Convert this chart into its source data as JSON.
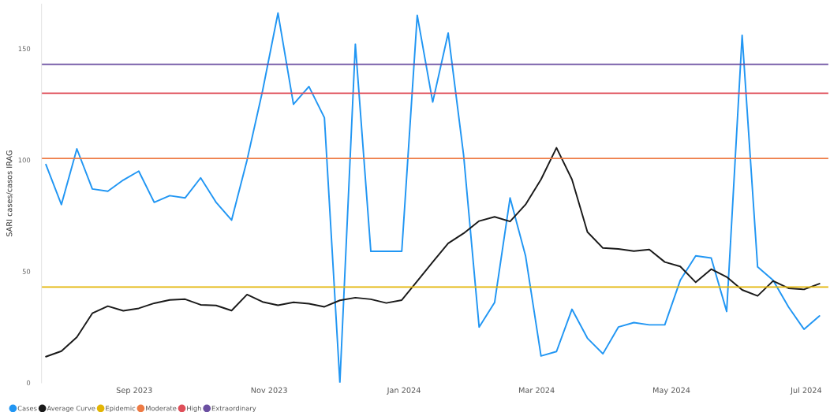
{
  "chart_data": {
    "type": "line",
    "ylabel": "SARI cases/casos IRAG",
    "x": [
      "2023-07-23",
      "2023-07-30",
      "2023-08-06",
      "2023-08-13",
      "2023-08-20",
      "2023-08-27",
      "2023-09-03",
      "2023-09-10",
      "2023-09-17",
      "2023-09-24",
      "2023-10-01",
      "2023-10-08",
      "2023-10-15",
      "2023-10-22",
      "2023-10-29",
      "2023-11-05",
      "2023-11-12",
      "2023-11-19",
      "2023-11-26",
      "2023-12-03",
      "2023-12-10",
      "2023-12-17",
      "2023-12-24",
      "2023-12-31",
      "2024-01-07",
      "2024-01-14",
      "2024-01-21",
      "2024-01-28",
      "2024-02-04",
      "2024-02-11",
      "2024-02-18",
      "2024-02-25",
      "2024-03-03",
      "2024-03-10",
      "2024-03-17",
      "2024-03-24",
      "2024-03-31",
      "2024-04-07",
      "2024-04-14",
      "2024-04-21",
      "2024-04-28",
      "2024-05-05",
      "2024-05-12",
      "2024-05-19",
      "2024-05-26",
      "2024-06-02",
      "2024-06-09",
      "2024-06-16",
      "2024-06-23",
      "2024-06-30",
      "2024-07-07"
    ],
    "series": [
      {
        "name": "Cases",
        "color": "#2196f3",
        "values": [
          98,
          80,
          105,
          87,
          86,
          91,
          95,
          81,
          84,
          83,
          92,
          81,
          73,
          100,
          131,
          166,
          125,
          133,
          119,
          0,
          152,
          59,
          59,
          59,
          165,
          126,
          157,
          102,
          25,
          36,
          83,
          57,
          12,
          14,
          33,
          20,
          13,
          25,
          27,
          26,
          26,
          46,
          57,
          56,
          32,
          156,
          52,
          46,
          34,
          24,
          30
        ]
      },
      {
        "name": "Average Curve",
        "color": "#1a1a1a",
        "values": [
          11.7,
          14.2,
          20.5,
          31.2,
          34.4,
          32.3,
          33.4,
          35.7,
          37.2,
          37.5,
          35.0,
          34.7,
          32.4,
          39.6,
          36.3,
          34.8,
          36.1,
          35.5,
          34.1,
          37.0,
          38.2,
          37.5,
          35.8,
          37.1,
          45.6,
          54.2,
          62.6,
          67.1,
          72.6,
          74.5,
          72.4,
          80.0,
          91.3,
          105.5,
          91.3,
          67.7,
          60.5,
          60.1,
          59.1,
          59.8,
          54.2,
          52.2,
          45.1,
          51.0,
          47.5,
          41.7,
          39.0,
          45.7,
          42.4,
          41.9,
          44.5
        ]
      }
    ],
    "ref_lines": [
      {
        "axis": "y",
        "value": 43,
        "label": "Epidemic",
        "color": "#e3b505"
      },
      {
        "axis": "y",
        "value": 100.7,
        "label": "Moderate",
        "color": "#ee7b45"
      },
      {
        "axis": "y",
        "value": 130,
        "label": "High",
        "color": "#df4f5a"
      },
      {
        "axis": "y",
        "value": 143,
        "label": "Extraordinary",
        "color": "#6b4fa1"
      }
    ],
    "xlim": [
      "2023-07-21",
      "2024-07-11"
    ],
    "xticks": [
      {
        "value": "2023-09-01",
        "label": "Sep 2023"
      },
      {
        "value": "2023-11-01",
        "label": "Nov 2023"
      },
      {
        "value": "2024-01-01",
        "label": "Jan 2024"
      },
      {
        "value": "2024-03-01",
        "label": "Mar 2024"
      },
      {
        "value": "2024-05-01",
        "label": "May 2024"
      },
      {
        "value": "2024-07-01",
        "label": "Jul 2024"
      }
    ],
    "ylim": [
      0,
      170
    ],
    "yticks": [
      0,
      50,
      100,
      150
    ],
    "grid": false,
    "legend": "bottom left",
    "marker": "none",
    "line_style": "solid"
  }
}
